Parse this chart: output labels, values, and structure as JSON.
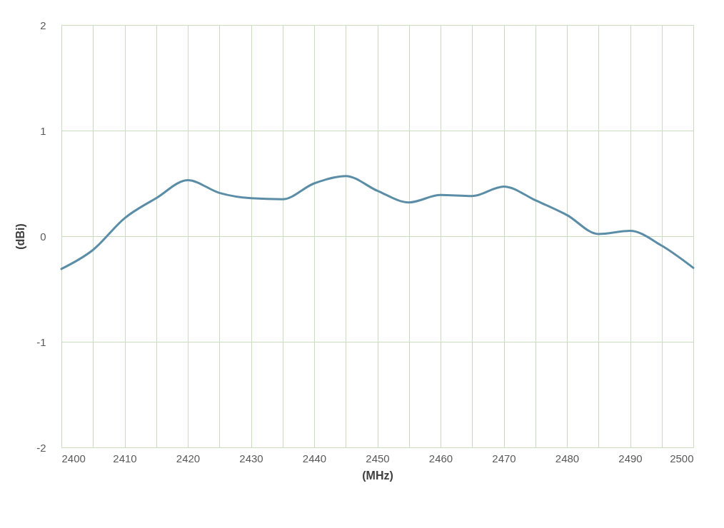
{
  "chart_data": {
    "type": "line",
    "xlabel": "(MHz)",
    "ylabel": "(dBi)",
    "x": [
      2400,
      2405,
      2410,
      2415,
      2420,
      2425,
      2430,
      2435,
      2440,
      2445,
      2450,
      2455,
      2460,
      2465,
      2470,
      2475,
      2480,
      2485,
      2490,
      2495,
      2500
    ],
    "series": [
      {
        "color": "#5b8ea6",
        "values": [
          -0.31,
          -0.13,
          0.17,
          0.36,
          0.53,
          0.41,
          0.36,
          0.35,
          0.5,
          0.57,
          0.43,
          0.32,
          0.39,
          0.38,
          0.47,
          0.34,
          0.2,
          0.02,
          0.05,
          -0.09,
          -0.3
        ]
      }
    ],
    "xlim": [
      2400,
      2500
    ],
    "xticks": [
      2400,
      {
        "value": 2405,
        "label": null
      },
      2410,
      {
        "value": 2415,
        "label": null
      },
      2420,
      {
        "value": 2425,
        "label": null
      },
      2430,
      {
        "value": 2435,
        "label": null
      },
      2440,
      {
        "value": 2445,
        "label": null
      },
      2450,
      {
        "value": 2455,
        "label": null
      },
      2460,
      {
        "value": 2465,
        "label": null
      },
      2470,
      {
        "value": 2475,
        "label": null
      },
      2480,
      {
        "value": 2485,
        "label": null
      },
      2490,
      {
        "value": 2495,
        "label": null
      },
      2500
    ],
    "ylim": [
      -2,
      2
    ],
    "yticks": [
      -2,
      -1,
      0,
      1,
      2
    ],
    "grid": true,
    "marker": "none",
    "line_style": "solid"
  }
}
